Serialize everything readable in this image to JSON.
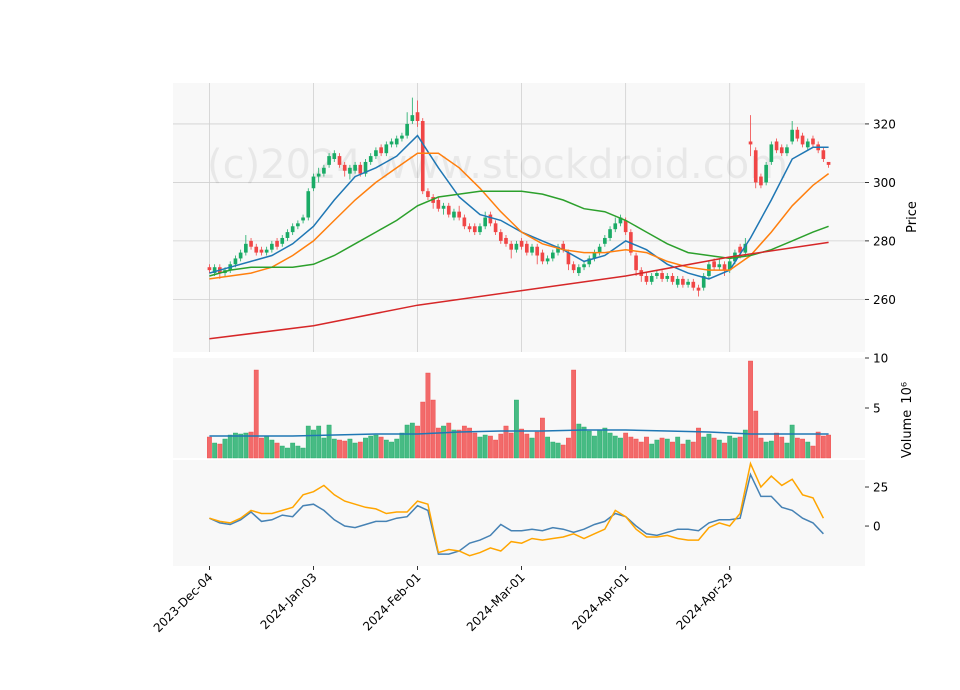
{
  "chart_data": {
    "type": "candlestick",
    "watermark": "(c)2024 www.stockdroid.com",
    "xlim": [
      -7,
      126
    ],
    "xticks": [
      {
        "value": 0,
        "label": "2023-Dec-04"
      },
      {
        "value": 20,
        "label": "2024-Jan-03"
      },
      {
        "value": 40,
        "label": "2024-Feb-01"
      },
      {
        "value": 60,
        "label": "2024-Mar-01"
      },
      {
        "value": 80,
        "label": "2024-Apr-01"
      },
      {
        "value": 100,
        "label": "2024-Apr-29"
      }
    ],
    "ylim": [
      242,
      334
    ],
    "yticks": [
      260,
      280,
      300,
      320
    ],
    "ylabel": "Price",
    "grid": true,
    "up_color": "#1aab66",
    "down_color": "#f04646",
    "ohlc": [
      [
        271,
        272,
        269,
        270
      ],
      [
        269,
        272,
        268,
        271
      ],
      [
        271,
        272,
        267,
        269
      ],
      [
        269,
        271,
        268,
        270
      ],
      [
        270,
        273,
        269,
        272
      ],
      [
        272,
        275,
        271,
        274
      ],
      [
        274,
        277,
        273,
        276
      ],
      [
        276,
        282,
        275,
        279
      ],
      [
        280,
        281,
        277,
        278
      ],
      [
        278,
        279,
        275,
        276
      ],
      [
        277,
        278,
        275,
        276
      ],
      [
        276,
        278,
        275,
        277
      ],
      [
        277,
        280,
        276,
        279
      ],
      [
        280,
        281,
        277,
        278
      ],
      [
        279,
        282,
        278,
        281
      ],
      [
        281,
        284,
        280,
        283
      ],
      [
        283,
        286,
        282,
        285
      ],
      [
        285,
        287,
        284,
        286
      ],
      [
        287,
        289,
        286,
        288
      ],
      [
        288,
        298,
        287,
        297
      ],
      [
        298,
        303,
        297,
        302
      ],
      [
        302,
        305,
        300,
        303
      ],
      [
        303,
        306,
        302,
        305
      ],
      [
        306,
        310,
        305,
        309
      ],
      [
        308,
        311,
        307,
        310
      ],
      [
        309,
        310,
        305,
        306
      ],
      [
        306,
        307,
        302,
        304
      ],
      [
        303,
        306,
        301,
        305
      ],
      [
        304,
        307,
        303,
        306
      ],
      [
        306,
        307,
        302,
        303
      ],
      [
        303,
        308,
        302,
        307
      ],
      [
        307,
        310,
        306,
        309
      ],
      [
        309,
        312,
        308,
        311
      ],
      [
        312,
        313,
        309,
        310
      ],
      [
        310,
        314,
        309,
        313
      ],
      [
        313,
        315,
        312,
        314
      ],
      [
        313,
        316,
        312,
        315
      ],
      [
        315,
        317,
        314,
        316
      ],
      [
        316,
        324,
        315,
        320
      ],
      [
        321,
        329,
        320,
        323
      ],
      [
        324,
        328,
        319,
        321
      ],
      [
        321,
        322,
        296,
        297
      ],
      [
        297,
        298,
        294,
        295
      ],
      [
        295,
        296,
        291,
        293
      ],
      [
        294,
        295,
        290,
        291
      ],
      [
        291,
        293,
        289,
        292
      ],
      [
        292,
        293,
        288,
        289
      ],
      [
        288,
        291,
        287,
        290
      ],
      [
        290,
        292,
        287,
        288
      ],
      [
        288,
        289,
        284,
        285
      ],
      [
        285,
        286,
        283,
        284
      ],
      [
        285,
        286,
        282,
        283
      ],
      [
        283,
        286,
        282,
        285
      ],
      [
        285,
        290,
        284,
        288
      ],
      [
        289,
        290,
        285,
        286
      ],
      [
        286,
        287,
        282,
        283
      ],
      [
        283,
        284,
        279,
        280
      ],
      [
        281,
        282,
        278,
        279
      ],
      [
        279,
        280,
        274,
        277
      ],
      [
        277,
        280,
        276,
        279
      ],
      [
        280,
        281,
        277,
        278
      ],
      [
        279,
        280,
        275,
        276
      ],
      [
        276,
        279,
        275,
        278
      ],
      [
        278,
        279,
        272,
        275
      ],
      [
        276,
        277,
        272,
        273
      ],
      [
        273,
        275,
        272,
        274
      ],
      [
        274,
        277,
        273,
        276
      ],
      [
        276,
        279,
        275,
        278
      ],
      [
        279,
        280,
        276,
        277
      ],
      [
        276,
        277,
        270,
        272
      ],
      [
        272,
        273,
        269,
        270
      ],
      [
        269,
        272,
        268,
        271
      ],
      [
        271,
        273,
        270,
        272
      ],
      [
        272,
        275,
        271,
        274
      ],
      [
        274,
        277,
        273,
        276
      ],
      [
        276,
        279,
        275,
        278
      ],
      [
        279,
        282,
        278,
        281
      ],
      [
        281,
        285,
        280,
        284
      ],
      [
        284,
        288,
        283,
        286
      ],
      [
        286,
        289,
        285,
        288
      ],
      [
        287,
        288,
        282,
        283
      ],
      [
        283,
        284,
        275,
        276
      ],
      [
        275,
        276,
        268,
        270
      ],
      [
        270,
        271,
        266,
        268
      ],
      [
        268,
        269,
        265,
        266
      ],
      [
        266,
        269,
        265,
        268
      ],
      [
        268,
        270,
        267,
        269
      ],
      [
        269,
        270,
        266,
        267
      ],
      [
        267,
        269,
        266,
        268
      ],
      [
        268,
        269,
        265,
        266
      ],
      [
        265,
        268,
        264,
        267
      ],
      [
        267,
        268,
        264,
        265
      ],
      [
        265,
        267,
        264,
        266
      ],
      [
        266,
        267,
        263,
        264
      ],
      [
        264,
        265,
        261,
        263
      ],
      [
        264,
        269,
        263,
        268
      ],
      [
        268,
        273,
        267,
        272
      ],
      [
        273,
        274,
        270,
        271
      ],
      [
        271,
        274,
        270,
        272
      ],
      [
        272,
        273,
        268,
        270
      ],
      [
        270,
        274,
        269,
        273
      ],
      [
        273,
        277,
        272,
        276
      ],
      [
        278,
        279,
        274,
        276
      ],
      [
        276,
        281,
        275,
        279
      ],
      [
        314,
        323,
        309,
        313
      ],
      [
        311,
        312,
        298,
        300
      ],
      [
        302,
        303,
        298,
        299
      ],
      [
        300,
        307,
        299,
        306
      ],
      [
        307,
        314,
        306,
        313
      ],
      [
        314,
        315,
        310,
        311
      ],
      [
        312,
        313,
        309,
        310
      ],
      [
        310,
        313,
        309,
        312
      ],
      [
        314,
        321,
        313,
        318
      ],
      [
        318,
        319,
        314,
        315
      ],
      [
        316,
        317,
        312,
        313
      ],
      [
        312,
        315,
        311,
        314
      ],
      [
        315,
        316,
        312,
        313
      ],
      [
        313,
        314,
        310,
        311
      ],
      [
        311,
        312,
        307,
        308
      ],
      [
        307,
        307,
        305,
        306
      ]
    ],
    "series": [
      {
        "color": "#1f77b4",
        "x": [
          0,
          4,
          8,
          12,
          16,
          20,
          24,
          28,
          32,
          36,
          40,
          44,
          48,
          52,
          56,
          60,
          64,
          68,
          72,
          76,
          80,
          84,
          88,
          92,
          96,
          100,
          104,
          108,
          112,
          116,
          119
        ],
        "values": [
          269,
          271,
          273,
          275,
          279,
          285,
          294,
          302,
          305,
          309,
          316,
          305,
          295,
          289,
          287,
          283,
          280,
          277,
          273,
          275,
          280,
          277,
          272,
          269,
          267,
          270,
          281,
          294,
          308,
          312,
          312
        ]
      },
      {
        "color": "#ff7f0e",
        "x": [
          0,
          4,
          8,
          12,
          16,
          20,
          24,
          28,
          32,
          36,
          40,
          44,
          48,
          52,
          56,
          60,
          64,
          68,
          72,
          76,
          80,
          84,
          88,
          92,
          96,
          100,
          104,
          108,
          112,
          116,
          119
        ],
        "values": [
          267,
          268,
          269,
          271,
          275,
          280,
          287,
          294,
          300,
          305,
          310,
          310,
          305,
          298,
          290,
          283,
          279,
          277,
          276,
          276,
          277,
          276,
          273,
          271,
          270,
          270,
          275,
          283,
          292,
          299,
          303
        ]
      },
      {
        "color": "#2ca02c",
        "x": [
          0,
          4,
          8,
          12,
          16,
          20,
          24,
          28,
          32,
          36,
          40,
          44,
          48,
          52,
          56,
          60,
          64,
          68,
          72,
          76,
          80,
          84,
          88,
          92,
          96,
          100,
          104,
          108,
          112,
          116,
          119
        ],
        "values": [
          268,
          270,
          271,
          271,
          271,
          272,
          275,
          279,
          283,
          287,
          292,
          295,
          296,
          297,
          297,
          297,
          296,
          294,
          291,
          290,
          287,
          283,
          279,
          276,
          275,
          274,
          275,
          277,
          280,
          283,
          285
        ]
      },
      {
        "color": "#d62728",
        "x": [
          0,
          20,
          40,
          60,
          80,
          100,
          119
        ],
        "values": [
          246.5,
          251,
          258,
          263,
          268,
          274.5,
          279.5
        ]
      }
    ],
    "volume": {
      "ylim": [
        0,
        10
      ],
      "yticks": [
        5,
        10
      ],
      "ylabel": "Volume",
      "scale": "10⁶",
      "values": [
        2.1,
        1.5,
        1.4,
        1.9,
        2.3,
        2.5,
        2.4,
        2.5,
        2.6,
        8.8,
        2.0,
        2.2,
        1.8,
        1.5,
        1.2,
        1.0,
        1.5,
        1.2,
        1.0,
        3.2,
        2.8,
        3.2,
        2.0,
        3.3,
        1.9,
        1.8,
        1.7,
        1.9,
        1.5,
        1.6,
        2.0,
        2.2,
        2.3,
        2.1,
        1.8,
        1.6,
        1.9,
        2.5,
        3.3,
        3.5,
        3.2,
        5.6,
        8.5,
        5.8,
        3.0,
        3.2,
        3.5,
        2.8,
        2.8,
        3.2,
        3.0,
        2.5,
        2.1,
        2.3,
        2.2,
        1.8,
        2.4,
        3.2,
        2.5,
        5.8,
        2.9,
        2.4,
        2.0,
        2.6,
        4.0,
        2.1,
        1.6,
        1.5,
        1.3,
        2.0,
        8.8,
        3.4,
        3.1,
        2.7,
        2.2,
        2.8,
        3.0,
        2.5,
        2.2,
        2.0,
        2.5,
        2.1,
        1.9,
        1.6,
        2.1,
        1.4,
        1.8,
        2.0,
        1.9,
        1.6,
        2.1,
        1.4,
        1.8,
        1.6,
        3.0,
        2.1,
        2.4,
        2.0,
        1.8,
        1.5,
        2.2,
        2.0,
        2.1,
        2.8,
        9.7,
        4.7,
        2.0,
        1.6,
        1.7,
        2.5,
        2.1,
        1.5,
        3.3,
        2.0,
        1.9,
        1.6,
        1.2,
        2.6,
        2.2,
        2.3
      ],
      "ma": {
        "color": "#1f77b4",
        "x": [
          0,
          8,
          16,
          24,
          32,
          40,
          48,
          56,
          64,
          72,
          80,
          88,
          96,
          104,
          112,
          119
        ],
        "values": [
          2.2,
          2.2,
          2.2,
          2.3,
          2.4,
          2.4,
          2.6,
          2.7,
          2.7,
          2.8,
          2.8,
          2.7,
          2.6,
          2.4,
          2.4,
          2.4
        ]
      }
    },
    "indicator": {
      "ylim": [
        -25.6,
        42.3
      ],
      "yticks": [
        0,
        25
      ],
      "series": [
        {
          "color": "#4682b4",
          "x": [
            0,
            2,
            4,
            6,
            8,
            10,
            12,
            14,
            16,
            18,
            20,
            22,
            24,
            26,
            28,
            30,
            32,
            34,
            36,
            38,
            40,
            42,
            44,
            46,
            48,
            50,
            52,
            54,
            56,
            58,
            60,
            62,
            64,
            66,
            68,
            70,
            72,
            74,
            76,
            78,
            80,
            82,
            84,
            86,
            88,
            90,
            92,
            94,
            96,
            98,
            100,
            102,
            104,
            106,
            108,
            110,
            112,
            114,
            116,
            118
          ],
          "values": [
            5,
            2,
            1,
            4,
            9,
            3,
            4,
            7,
            6,
            13,
            14,
            10,
            4,
            0,
            -1,
            1,
            3,
            3,
            5,
            6,
            13,
            10,
            -18,
            -18,
            -16,
            -11,
            -9,
            -6,
            1,
            -3,
            -3,
            -2,
            -3,
            -1,
            -2,
            -4,
            -2,
            1,
            3,
            8,
            6,
            0,
            -5,
            -6,
            -4,
            -2,
            -2,
            -3,
            2,
            4,
            4,
            5,
            33,
            19,
            19,
            12,
            10,
            5,
            2,
            -5
          ]
        },
        {
          "color": "#ffa500",
          "x": [
            0,
            2,
            4,
            6,
            8,
            10,
            12,
            14,
            16,
            18,
            20,
            22,
            24,
            26,
            28,
            30,
            32,
            34,
            36,
            38,
            40,
            42,
            44,
            46,
            48,
            50,
            52,
            54,
            56,
            58,
            60,
            62,
            64,
            66,
            68,
            70,
            72,
            74,
            76,
            78,
            80,
            82,
            84,
            86,
            88,
            90,
            92,
            94,
            96,
            98,
            100,
            102,
            104,
            106,
            108,
            110,
            112,
            114,
            116,
            118
          ],
          "values": [
            5,
            3,
            2,
            5,
            10,
            8,
            8,
            10,
            12,
            20,
            22,
            26,
            20,
            16,
            14,
            12,
            11,
            8,
            9,
            9,
            16,
            14,
            -17,
            -15,
            -16,
            -19,
            -17,
            -14,
            -16,
            -10,
            -11,
            -8,
            -9,
            -8,
            -7,
            -5,
            -8,
            -5,
            -2,
            10,
            6,
            -2,
            -7,
            -7,
            -6,
            -8,
            -9,
            -9,
            -1,
            2,
            0,
            8,
            40,
            25,
            32,
            26,
            30,
            20,
            18,
            5
          ]
        }
      ]
    }
  }
}
